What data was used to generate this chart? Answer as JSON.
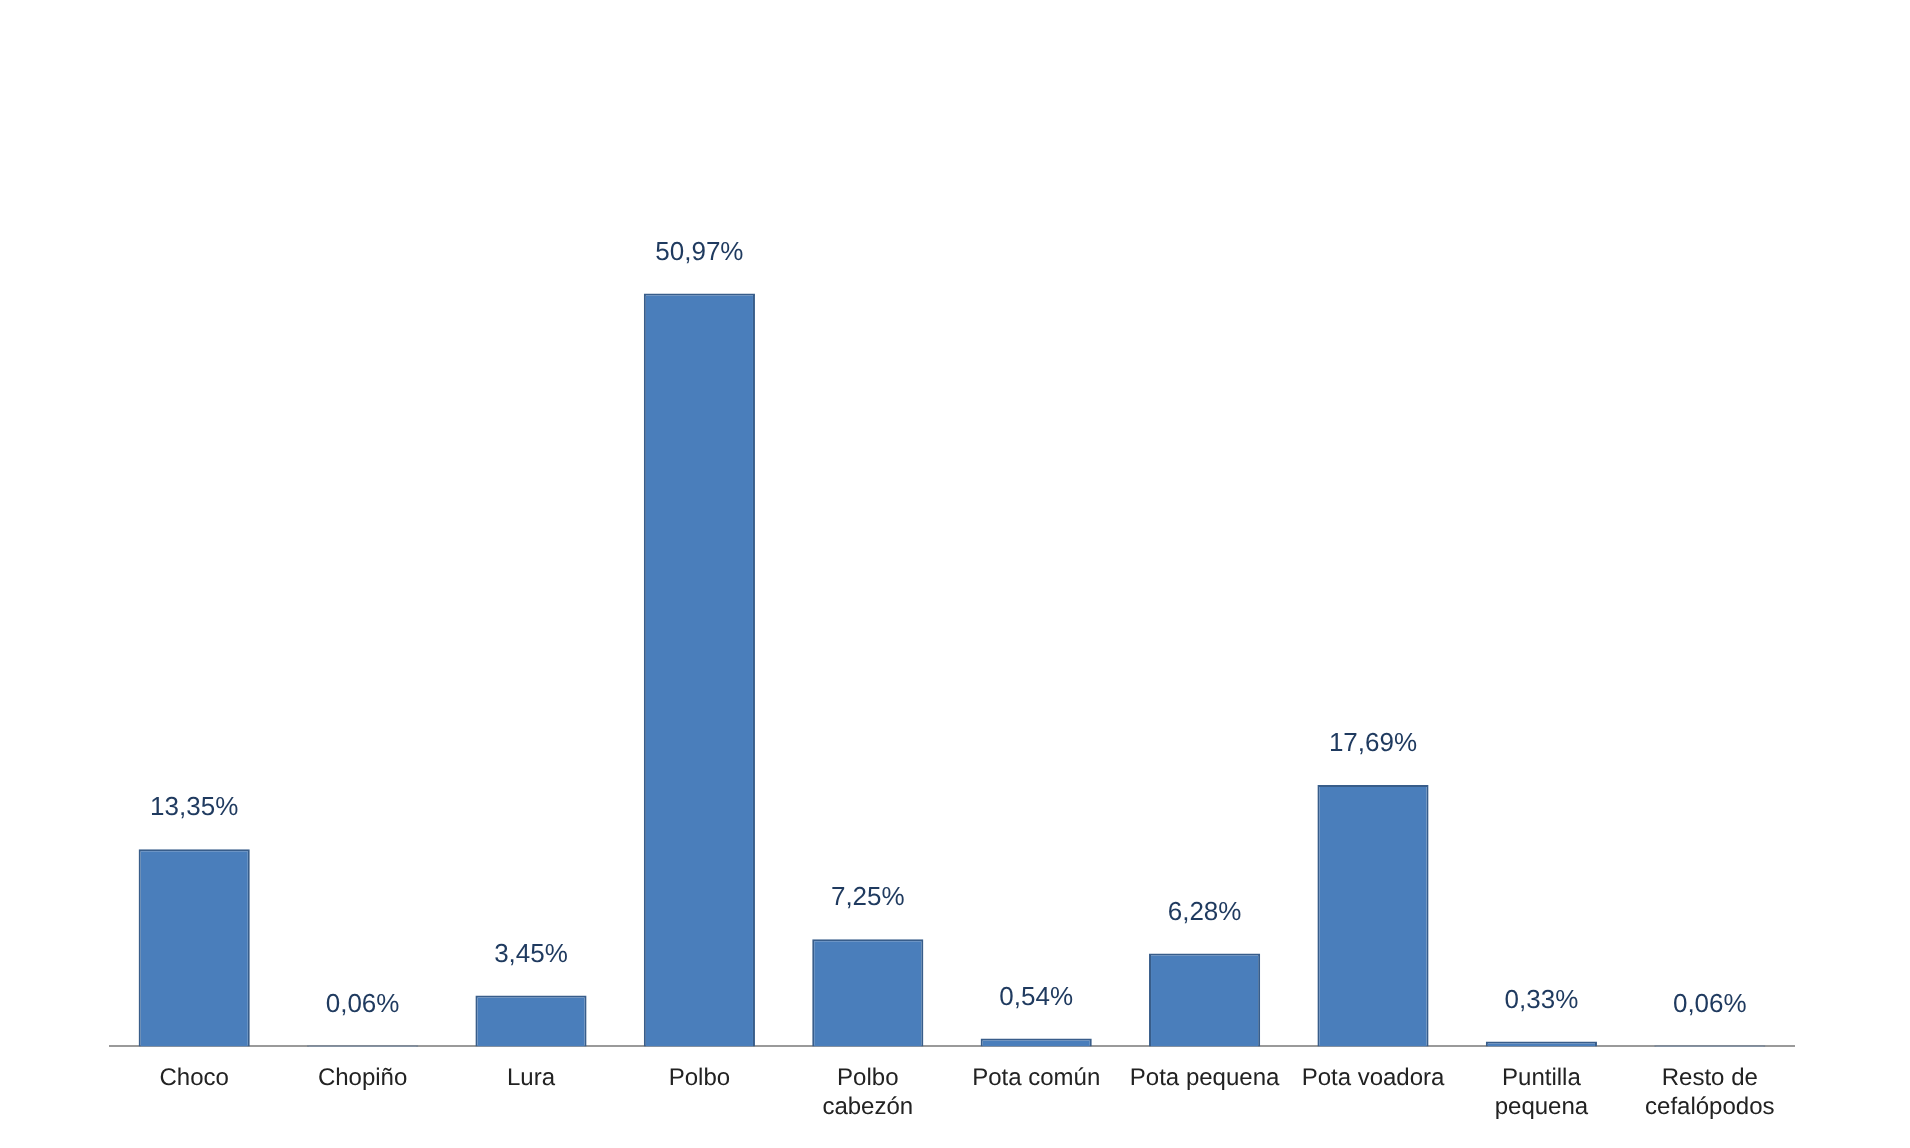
{
  "chart_data": {
    "type": "bar",
    "categories": [
      "Choco",
      "Chopiño",
      "Lura",
      "Polbo",
      "Polbo cabezón",
      "Pota común",
      "Pota pequena",
      "Pota voadora",
      "Puntilla pequena",
      "Resto de cefalópodos"
    ],
    "values": [
      13.35,
      0.06,
      3.45,
      50.97,
      7.25,
      0.54,
      6.28,
      17.69,
      0.33,
      0.06
    ],
    "value_labels": [
      "13,35%",
      "0,06%",
      "3,45%",
      "50,97%",
      "7,25%",
      "0,54%",
      "6,28%",
      "17,69%",
      "0,33%",
      "0,06%"
    ],
    "color": "#4a7ebb",
    "grid": false,
    "legend": false
  }
}
